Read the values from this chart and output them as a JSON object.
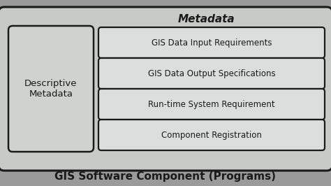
{
  "fig_bg": "#9a9a9a",
  "outer_box_facecolor": "#c8cac8",
  "outer_box_edgecolor": "#1a1a1a",
  "left_box_facecolor": "#d0d2d0",
  "left_box_edgecolor": "#1a1a1a",
  "item_box_facecolor": "#dcdedd",
  "item_box_edgecolor": "#1a1a1a",
  "text_color": "#1a1a1a",
  "title_metadata": "Metadata",
  "left_box_text": "Descriptive\nMetadata",
  "items": [
    "GIS Data Input Requirements",
    "GIS Data Output Specifications",
    "Run-time System Requirement",
    "Component Registration"
  ],
  "bottom_label": "GIS Software Component (Programs)"
}
